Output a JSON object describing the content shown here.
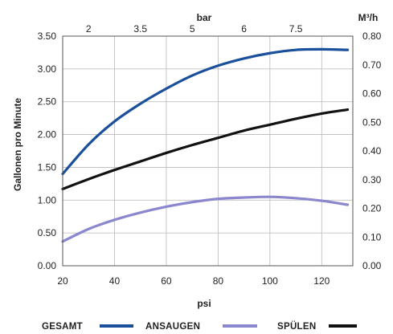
{
  "chart_data": {
    "type": "line",
    "xlabel": "psi",
    "ylabel": "Gallonen pro Minute",
    "top_axis_label": "bar",
    "right_axis_label": "M³/h",
    "xlim": [
      20,
      132
    ],
    "ylim": [
      0,
      3.5
    ],
    "x_ticks": [
      "20",
      "40",
      "60",
      "80",
      "100",
      "120"
    ],
    "y_ticks": [
      "0.00",
      "0.50",
      "1.00",
      "1.50",
      "2.00",
      "2.50",
      "3.00",
      "3.50"
    ],
    "top_ticks": [
      {
        "value": 30,
        "label": "2"
      },
      {
        "value": 50,
        "label": "3.5"
      },
      {
        "value": 70,
        "label": "5"
      },
      {
        "value": 90,
        "label": "6"
      },
      {
        "value": 110,
        "label": "7.5"
      }
    ],
    "right_ticks": [
      "0.00",
      "0.10",
      "0.20",
      "0.30",
      "0.40",
      "0.50",
      "0.60",
      "0.70",
      "0.80"
    ],
    "grid": true,
    "legend_position": "bottom",
    "series": [
      {
        "name": "GESAMT",
        "color": "#1a4f9c",
        "x": [
          20,
          30,
          40,
          50,
          60,
          70,
          80,
          90,
          100,
          110,
          120,
          130
        ],
        "values": [
          1.4,
          1.85,
          2.2,
          2.47,
          2.7,
          2.9,
          3.05,
          3.16,
          3.24,
          3.29,
          3.3,
          3.29
        ]
      },
      {
        "name": "ANSAUGEN",
        "color": "#8a87cf",
        "x": [
          20,
          30,
          40,
          50,
          60,
          70,
          80,
          90,
          100,
          110,
          120,
          130
        ],
        "values": [
          0.37,
          0.56,
          0.7,
          0.81,
          0.9,
          0.97,
          1.02,
          1.04,
          1.05,
          1.03,
          0.99,
          0.93
        ]
      },
      {
        "name": "SPÜLEN",
        "color": "#111111",
        "x": [
          20,
          30,
          40,
          50,
          60,
          70,
          80,
          90,
          100,
          110,
          120,
          130
        ],
        "values": [
          1.17,
          1.32,
          1.46,
          1.59,
          1.72,
          1.84,
          1.95,
          2.06,
          2.15,
          2.24,
          2.32,
          2.38
        ]
      }
    ]
  }
}
